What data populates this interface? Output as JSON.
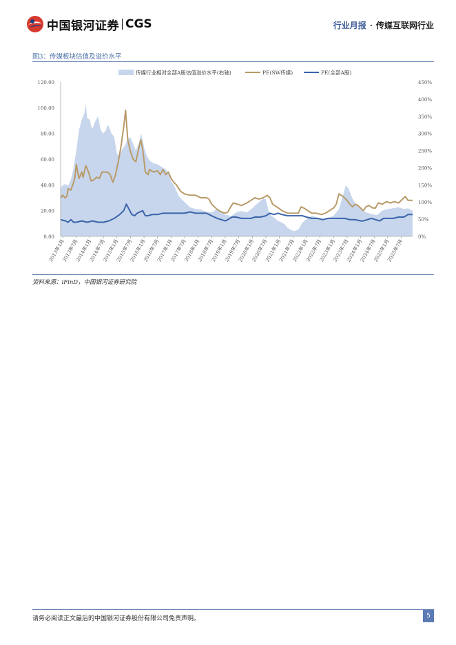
{
  "header": {
    "logo_cn": "中国银河证券",
    "logo_en": "CGS",
    "report_type": "行业月报",
    "separator": "·",
    "industry": "传媒互联网行业"
  },
  "figure": {
    "title": "图3：传媒板块估值及溢价水平",
    "source": "资料来源：iFinD，中国银河证券研究院"
  },
  "footer": {
    "disclaimer": "请务必阅读正文最后的中国银河证券股份有限公司免责声明。",
    "page": "5"
  },
  "colors": {
    "area": "#c7d6ec",
    "pe_sw": "#b89a68",
    "pe_all": "#3a63aa",
    "accent": "#5b7bb5"
  },
  "chart_data": {
    "type": "line",
    "legend_position": "top",
    "grid": false,
    "x_ticks": [
      "2013年1月",
      "2013年7月",
      "2014年1月",
      "2014年7月",
      "2015年1月",
      "2015年7月",
      "2016年1月",
      "2016年7月",
      "2017年1月",
      "2017年7月",
      "2018年1月",
      "2018年7月",
      "2019年1月",
      "2019年7月",
      "2020年1月",
      "2020年7月",
      "2021年1月",
      "2021年7月",
      "2022年1月",
      "2022年7月",
      "2023年1月",
      "2023年7月",
      "2024年1月",
      "2024年7月",
      "2025年1月",
      "2025年7月"
    ],
    "y_left": {
      "ticks": [
        "0.00",
        "20.00",
        "40.00",
        "60.00",
        "80.00",
        "100.00",
        "120.00"
      ],
      "range": [
        0,
        120
      ]
    },
    "y_right": {
      "ticks": [
        "0%",
        "50%",
        "100%",
        "150%",
        "200%",
        "250%",
        "300%",
        "350%",
        "400%",
        "450%"
      ],
      "range": [
        0,
        450
      ]
    },
    "x_range": [
      2012.92,
      2025.92
    ],
    "series": [
      {
        "name": "传媒行业相对全部A股估值溢价水平(右轴)",
        "type": "area",
        "axis": "right",
        "points": [
          [
            2012.92,
            140
          ],
          [
            2013.0,
            150
          ],
          [
            2013.1,
            152
          ],
          [
            2013.2,
            148
          ],
          [
            2013.3,
            165
          ],
          [
            2013.4,
            200
          ],
          [
            2013.5,
            250
          ],
          [
            2013.6,
            310
          ],
          [
            2013.7,
            340
          ],
          [
            2013.8,
            360
          ],
          [
            2013.85,
            385
          ],
          [
            2013.9,
            345
          ],
          [
            2014.0,
            340
          ],
          [
            2014.05,
            320
          ],
          [
            2014.1,
            315
          ],
          [
            2014.2,
            335
          ],
          [
            2014.3,
            350
          ],
          [
            2014.35,
            330
          ],
          [
            2014.4,
            310
          ],
          [
            2014.5,
            300
          ],
          [
            2014.6,
            310
          ],
          [
            2014.65,
            325
          ],
          [
            2014.7,
            320
          ],
          [
            2014.8,
            300
          ],
          [
            2014.9,
            290
          ],
          [
            2015.0,
            240
          ],
          [
            2015.1,
            235
          ],
          [
            2015.2,
            255
          ],
          [
            2015.3,
            265
          ],
          [
            2015.4,
            285
          ],
          [
            2015.5,
            288
          ],
          [
            2015.6,
            270
          ],
          [
            2015.7,
            250
          ],
          [
            2015.8,
            270
          ],
          [
            2015.9,
            300
          ],
          [
            2016.0,
            260
          ],
          [
            2016.1,
            235
          ],
          [
            2016.2,
            222
          ],
          [
            2016.3,
            215
          ],
          [
            2016.5,
            210
          ],
          [
            2016.7,
            200
          ],
          [
            2016.8,
            195
          ],
          [
            2016.9,
            185
          ],
          [
            2017.0,
            160
          ],
          [
            2017.1,
            150
          ],
          [
            2017.3,
            115
          ],
          [
            2017.5,
            100
          ],
          [
            2017.7,
            85
          ],
          [
            2017.9,
            80
          ],
          [
            2018.1,
            78
          ],
          [
            2018.3,
            72
          ],
          [
            2018.5,
            70
          ],
          [
            2018.7,
            80
          ],
          [
            2018.9,
            70
          ],
          [
            2019.0,
            62
          ],
          [
            2019.1,
            62
          ],
          [
            2019.2,
            58
          ],
          [
            2019.3,
            64
          ],
          [
            2019.45,
            72
          ],
          [
            2019.6,
            74
          ],
          [
            2019.8,
            70
          ],
          [
            2020.0,
            82
          ],
          [
            2020.1,
            90
          ],
          [
            2020.25,
            100
          ],
          [
            2020.4,
            110
          ],
          [
            2020.5,
            108
          ],
          [
            2020.6,
            75
          ],
          [
            2020.7,
            60
          ],
          [
            2020.8,
            55
          ],
          [
            2020.95,
            45
          ],
          [
            2021.1,
            40
          ],
          [
            2021.2,
            35
          ],
          [
            2021.3,
            25
          ],
          [
            2021.4,
            20
          ],
          [
            2021.55,
            15
          ],
          [
            2021.7,
            20
          ],
          [
            2021.85,
            40
          ],
          [
            2022.0,
            50
          ],
          [
            2022.2,
            60
          ],
          [
            2022.4,
            55
          ],
          [
            2022.55,
            50
          ],
          [
            2022.7,
            48
          ],
          [
            2022.85,
            55
          ],
          [
            2023.0,
            60
          ],
          [
            2023.2,
            80
          ],
          [
            2023.35,
            120
          ],
          [
            2023.45,
            148
          ],
          [
            2023.55,
            140
          ],
          [
            2023.7,
            110
          ],
          [
            2023.85,
            90
          ],
          [
            2024.0,
            80
          ],
          [
            2024.2,
            70
          ],
          [
            2024.4,
            65
          ],
          [
            2024.6,
            62
          ],
          [
            2024.8,
            75
          ],
          [
            2025.0,
            80
          ],
          [
            2025.2,
            82
          ],
          [
            2025.4,
            85
          ],
          [
            2025.6,
            80
          ],
          [
            2025.75,
            82
          ],
          [
            2025.85,
            78
          ],
          [
            2025.92,
            75
          ]
        ]
      },
      {
        "name": "PE(SW传媒)",
        "type": "line",
        "axis": "left",
        "points": [
          [
            2012.92,
            30
          ],
          [
            2013.0,
            32
          ],
          [
            2013.08,
            30
          ],
          [
            2013.15,
            31
          ],
          [
            2013.2,
            37
          ],
          [
            2013.3,
            36
          ],
          [
            2013.4,
            42
          ],
          [
            2013.45,
            46
          ],
          [
            2013.5,
            56
          ],
          [
            2013.55,
            50
          ],
          [
            2013.6,
            45
          ],
          [
            2013.7,
            50
          ],
          [
            2013.75,
            46
          ],
          [
            2013.85,
            55
          ],
          [
            2013.95,
            50
          ],
          [
            2014.05,
            43
          ],
          [
            2014.15,
            44
          ],
          [
            2014.25,
            46
          ],
          [
            2014.35,
            45
          ],
          [
            2014.45,
            50
          ],
          [
            2014.55,
            50
          ],
          [
            2014.65,
            50
          ],
          [
            2014.75,
            48
          ],
          [
            2014.85,
            42
          ],
          [
            2014.95,
            48
          ],
          [
            2015.05,
            58
          ],
          [
            2015.15,
            70
          ],
          [
            2015.25,
            85
          ],
          [
            2015.32,
            98
          ],
          [
            2015.4,
            75
          ],
          [
            2015.5,
            66
          ],
          [
            2015.6,
            60
          ],
          [
            2015.7,
            58
          ],
          [
            2015.8,
            68
          ],
          [
            2015.88,
            75
          ],
          [
            2015.95,
            68
          ],
          [
            2016.05,
            50
          ],
          [
            2016.15,
            48
          ],
          [
            2016.2,
            52
          ],
          [
            2016.35,
            50
          ],
          [
            2016.5,
            51
          ],
          [
            2016.6,
            48
          ],
          [
            2016.7,
            52
          ],
          [
            2016.8,
            48
          ],
          [
            2016.9,
            50
          ],
          [
            2017.0,
            45
          ],
          [
            2017.1,
            42
          ],
          [
            2017.2,
            40
          ],
          [
            2017.35,
            35
          ],
          [
            2017.5,
            33
          ],
          [
            2017.7,
            32
          ],
          [
            2017.9,
            32
          ],
          [
            2018.1,
            30
          ],
          [
            2018.3,
            30
          ],
          [
            2018.4,
            29
          ],
          [
            2018.5,
            25
          ],
          [
            2018.7,
            21
          ],
          [
            2018.85,
            19
          ],
          [
            2019.0,
            18
          ],
          [
            2019.1,
            19
          ],
          [
            2019.2,
            23
          ],
          [
            2019.3,
            26
          ],
          [
            2019.45,
            25
          ],
          [
            2019.6,
            24
          ],
          [
            2019.8,
            26
          ],
          [
            2019.95,
            28
          ],
          [
            2020.1,
            30
          ],
          [
            2020.25,
            29
          ],
          [
            2020.4,
            30
          ],
          [
            2020.55,
            32
          ],
          [
            2020.65,
            30
          ],
          [
            2020.75,
            25
          ],
          [
            2020.9,
            23
          ],
          [
            2021.1,
            20
          ],
          [
            2021.3,
            18
          ],
          [
            2021.5,
            18
          ],
          [
            2021.7,
            18
          ],
          [
            2021.8,
            23
          ],
          [
            2021.9,
            22
          ],
          [
            2022.05,
            20
          ],
          [
            2022.2,
            18
          ],
          [
            2022.35,
            18
          ],
          [
            2022.55,
            17
          ],
          [
            2022.7,
            18
          ],
          [
            2022.85,
            20
          ],
          [
            2023.0,
            22
          ],
          [
            2023.1,
            25
          ],
          [
            2023.2,
            33
          ],
          [
            2023.35,
            31
          ],
          [
            2023.5,
            28
          ],
          [
            2023.6,
            25
          ],
          [
            2023.7,
            23
          ],
          [
            2023.8,
            25
          ],
          [
            2023.9,
            24
          ],
          [
            2024.0,
            22
          ],
          [
            2024.1,
            20
          ],
          [
            2024.2,
            23
          ],
          [
            2024.3,
            24
          ],
          [
            2024.45,
            22
          ],
          [
            2024.55,
            22
          ],
          [
            2024.65,
            26
          ],
          [
            2024.8,
            25
          ],
          [
            2024.95,
            27
          ],
          [
            2025.1,
            26
          ],
          [
            2025.25,
            27
          ],
          [
            2025.4,
            26
          ],
          [
            2025.55,
            29
          ],
          [
            2025.65,
            31
          ],
          [
            2025.75,
            28
          ],
          [
            2025.92,
            28
          ]
        ]
      },
      {
        "name": "PE(全部A股)",
        "type": "line",
        "axis": "left",
        "points": [
          [
            2012.92,
            13
          ],
          [
            2013.1,
            12
          ],
          [
            2013.2,
            11
          ],
          [
            2013.3,
            13
          ],
          [
            2013.4,
            11
          ],
          [
            2013.5,
            11
          ],
          [
            2013.7,
            12
          ],
          [
            2013.9,
            11
          ],
          [
            2014.1,
            12
          ],
          [
            2014.3,
            11
          ],
          [
            2014.5,
            11
          ],
          [
            2014.7,
            12
          ],
          [
            2014.9,
            14
          ],
          [
            2015.1,
            17
          ],
          [
            2015.25,
            20
          ],
          [
            2015.35,
            25
          ],
          [
            2015.45,
            21
          ],
          [
            2015.55,
            17
          ],
          [
            2015.65,
            16
          ],
          [
            2015.75,
            18
          ],
          [
            2015.85,
            19
          ],
          [
            2015.95,
            20
          ],
          [
            2016.05,
            16
          ],
          [
            2016.15,
            16
          ],
          [
            2016.3,
            17
          ],
          [
            2016.5,
            17
          ],
          [
            2016.7,
            18
          ],
          [
            2016.9,
            18
          ],
          [
            2017.1,
            18
          ],
          [
            2017.3,
            18
          ],
          [
            2017.5,
            18
          ],
          [
            2017.7,
            19
          ],
          [
            2017.9,
            18
          ],
          [
            2018.1,
            18
          ],
          [
            2018.3,
            18
          ],
          [
            2018.5,
            16
          ],
          [
            2018.7,
            14
          ],
          [
            2018.85,
            13
          ],
          [
            2019.0,
            12
          ],
          [
            2019.1,
            13
          ],
          [
            2019.25,
            15
          ],
          [
            2019.4,
            15
          ],
          [
            2019.6,
            14
          ],
          [
            2019.8,
            14
          ],
          [
            2019.95,
            14
          ],
          [
            2020.1,
            15
          ],
          [
            2020.3,
            15
          ],
          [
            2020.5,
            16
          ],
          [
            2020.65,
            18
          ],
          [
            2020.8,
            17
          ],
          [
            2020.95,
            18
          ],
          [
            2021.1,
            17
          ],
          [
            2021.3,
            16
          ],
          [
            2021.5,
            16
          ],
          [
            2021.7,
            16
          ],
          [
            2021.85,
            16
          ],
          [
            2022.0,
            15
          ],
          [
            2022.2,
            14
          ],
          [
            2022.4,
            14
          ],
          [
            2022.6,
            13
          ],
          [
            2022.8,
            14
          ],
          [
            2023.0,
            14
          ],
          [
            2023.2,
            14
          ],
          [
            2023.4,
            14
          ],
          [
            2023.6,
            13
          ],
          [
            2023.8,
            13
          ],
          [
            2024.0,
            12
          ],
          [
            2024.1,
            12
          ],
          [
            2024.25,
            13
          ],
          [
            2024.4,
            14
          ],
          [
            2024.55,
            13
          ],
          [
            2024.7,
            12
          ],
          [
            2024.85,
            14
          ],
          [
            2025.0,
            14
          ],
          [
            2025.2,
            14
          ],
          [
            2025.4,
            15
          ],
          [
            2025.6,
            15
          ],
          [
            2025.75,
            17
          ],
          [
            2025.92,
            17
          ]
        ]
      }
    ]
  }
}
